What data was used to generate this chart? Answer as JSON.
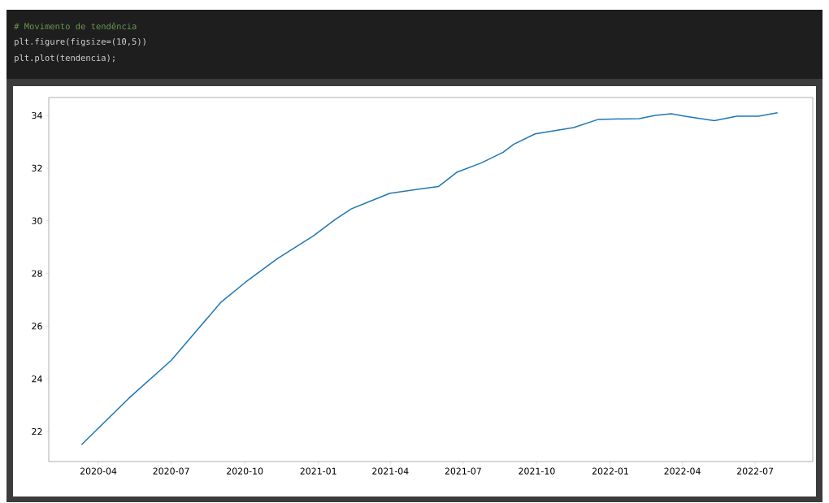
{
  "chart_data": {
    "type": "line",
    "annotations": [
      "# Movimento de tendência",
      "plt.figure(figsize=(10,5))",
      "plt.plot(tendencia);"
    ],
    "x": [
      "2020-03-11",
      "2020-05-09",
      "2020-07-01",
      "2020-08-05",
      "2020-09-01",
      "2020-10-02",
      "2020-11-11",
      "2020-12-26",
      "2021-01-22",
      "2021-02-11",
      "2021-03-31",
      "2021-05-18",
      "2021-05-31",
      "2021-06-23",
      "2021-07-24",
      "2021-08-20",
      "2021-09-02",
      "2021-09-29",
      "2021-11-16",
      "2021-12-17",
      "2022-02-06",
      "2022-02-26",
      "2022-03-18",
      "2022-04-04",
      "2022-05-11",
      "2022-06-08",
      "2022-07-05",
      "2022-07-29"
    ],
    "series": [
      {
        "color": "#1f77b4",
        "values": [
          21.5,
          23.26,
          24.7,
          25.94,
          26.9,
          27.67,
          28.57,
          29.43,
          30.05,
          30.45,
          31.04,
          31.25,
          31.3,
          31.84,
          32.2,
          32.6,
          32.9,
          33.3,
          33.54,
          33.85,
          33.88,
          34.0,
          34.06,
          33.97,
          33.8,
          33.97,
          33.97,
          34.1
        ]
      }
    ],
    "xlim": [
      "2020-01-30",
      "2022-09-11"
    ],
    "ylim": [
      20.86,
      34.68
    ],
    "xticks": [
      "2020-04",
      "2020-07",
      "2020-10",
      "2021-01",
      "2021-04",
      "2021-07",
      "2021-10",
      "2022-01",
      "2022-04",
      "2022-07"
    ],
    "yticks": [
      22,
      24,
      26,
      28,
      30,
      32,
      34
    ],
    "grid": false,
    "marker": "none",
    "line_style": "solid"
  }
}
